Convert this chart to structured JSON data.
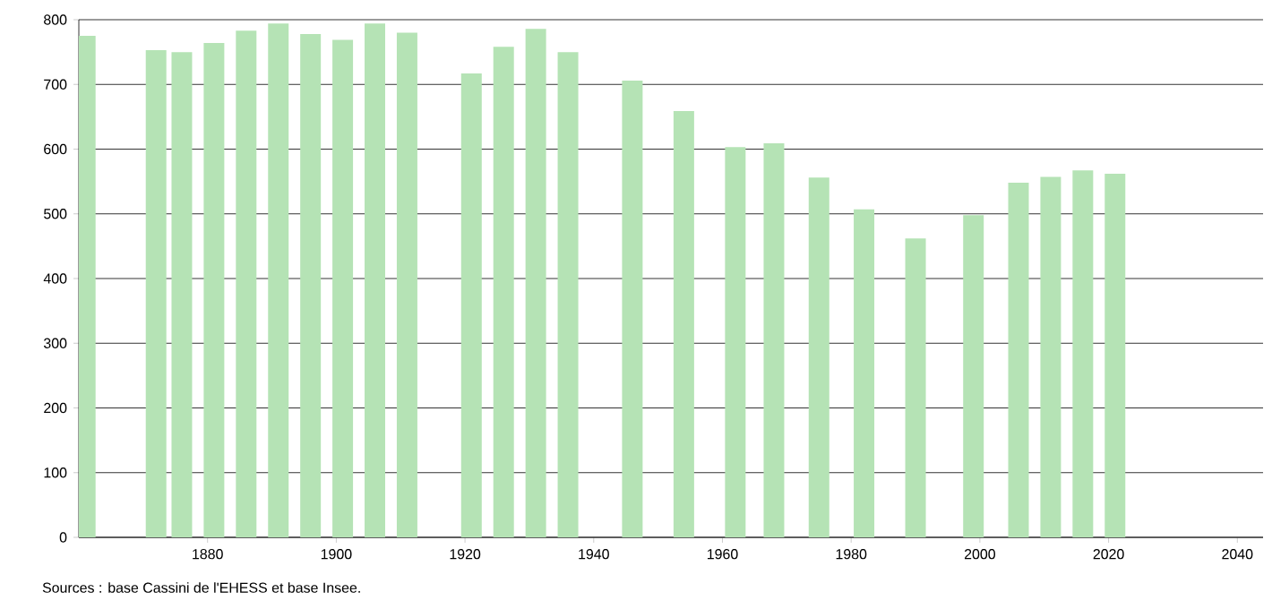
{
  "chart_data": {
    "type": "bar",
    "color": "#b5e3b5",
    "x": [
      1861,
      1872,
      1876,
      1881,
      1886,
      1891,
      1896,
      1901,
      1906,
      1911,
      1921,
      1926,
      1931,
      1936,
      1946,
      1954,
      1962,
      1968,
      1975,
      1982,
      1990,
      1999,
      2006,
      2011,
      2016,
      2021
    ],
    "values": [
      775,
      753,
      750,
      764,
      783,
      794,
      778,
      769,
      794,
      780,
      717,
      758,
      786,
      750,
      706,
      659,
      603,
      609,
      556,
      507,
      462,
      498,
      548,
      557,
      567,
      562
    ],
    "xlim": [
      1860,
      2044
    ],
    "xticks": [
      1880,
      1900,
      1920,
      1940,
      1960,
      1980,
      2000,
      2020,
      2040
    ],
    "ylim": [
      0,
      800
    ],
    "yticks": [
      0,
      100,
      200,
      300,
      400,
      500,
      600,
      700,
      800
    ],
    "grid": "y",
    "annotations": [
      "Sources : base Cassini de l'EHESS et base Insee."
    ]
  }
}
